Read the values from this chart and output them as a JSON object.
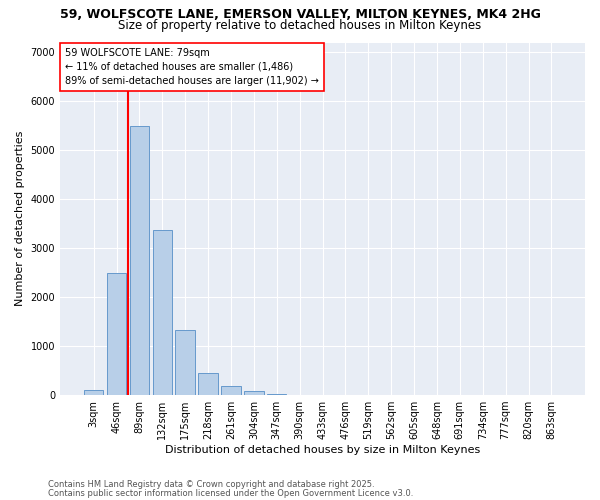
{
  "title_line1": "59, WOLFSCOTE LANE, EMERSON VALLEY, MILTON KEYNES, MK4 2HG",
  "title_line2": "Size of property relative to detached houses in Milton Keynes",
  "xlabel": "Distribution of detached houses by size in Milton Keynes",
  "ylabel": "Number of detached properties",
  "categories": [
    "3sqm",
    "46sqm",
    "89sqm",
    "132sqm",
    "175sqm",
    "218sqm",
    "261sqm",
    "304sqm",
    "347sqm",
    "390sqm",
    "433sqm",
    "476sqm",
    "519sqm",
    "562sqm",
    "605sqm",
    "648sqm",
    "691sqm",
    "734sqm",
    "777sqm",
    "820sqm",
    "863sqm"
  ],
  "bar_heights": [
    100,
    2500,
    5500,
    3380,
    1320,
    460,
    185,
    90,
    30,
    5,
    0,
    0,
    0,
    0,
    0,
    0,
    0,
    0,
    0,
    0,
    0
  ],
  "bar_color": "#b8cfe8",
  "bar_edgecolor": "#6699cc",
  "vline_color": "red",
  "annotation_text": "59 WOLFSCOTE LANE: 79sqm\n← 11% of detached houses are smaller (1,486)\n89% of semi-detached houses are larger (11,902) →",
  "ylim": [
    0,
    7200
  ],
  "background_color": "#e8edf5",
  "grid_color": "#ffffff",
  "footer_line1": "Contains HM Land Registry data © Crown copyright and database right 2025.",
  "footer_line2": "Contains public sector information licensed under the Open Government Licence v3.0.",
  "title_fontsize": 9,
  "subtitle_fontsize": 8.5,
  "axis_label_fontsize": 8,
  "tick_fontsize": 7,
  "footer_fontsize": 6,
  "annotation_fontsize": 7
}
